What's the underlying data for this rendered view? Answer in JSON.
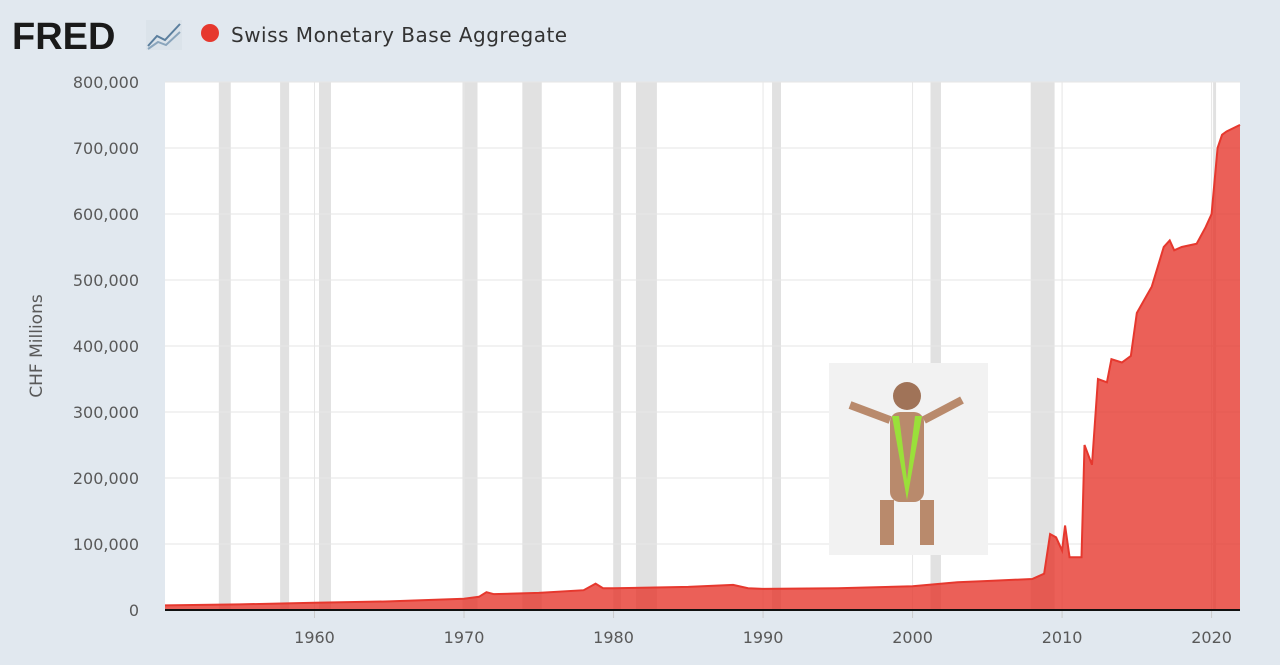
{
  "header": {
    "logo": "FRED"
  },
  "chart_data": {
    "type": "area",
    "y_label": "CHF Millions",
    "series": [
      {
        "name": "Swiss Monetary Base Aggregate",
        "color": "#e6382e",
        "x": [
          1950,
          1955,
          1960,
          1965,
          1970,
          1971,
          1971.5,
          1972,
          1975,
          1978,
          1978.8,
          1979.3,
          1980,
          1985,
          1988,
          1989,
          1990,
          1995,
          2000,
          2003,
          2005,
          2008,
          2008.8,
          2009.2,
          2009.6,
          2010,
          2010.2,
          2010.5,
          2011.3,
          2011.5,
          2012,
          2012.4,
          2013,
          2013.3,
          2014,
          2014.6,
          2015,
          2015.5,
          2016,
          2016.8,
          2017.2,
          2017.5,
          2018,
          2019,
          2019.6,
          2020,
          2020.4,
          2020.7,
          2021,
          2021.9
        ],
        "values": [
          7000,
          8500,
          11000,
          13000,
          17000,
          20000,
          27000,
          24000,
          26000,
          30000,
          40000,
          33000,
          33000,
          35000,
          38000,
          33000,
          32000,
          33000,
          36000,
          42000,
          44000,
          47000,
          55000,
          115000,
          110000,
          90000,
          128000,
          80000,
          80000,
          250000,
          220000,
          350000,
          345000,
          380000,
          375000,
          385000,
          450000,
          470000,
          490000,
          550000,
          560000,
          545000,
          550000,
          555000,
          580000,
          600000,
          700000,
          720000,
          725000,
          735000
        ]
      }
    ],
    "recessions": [
      [
        1953.6,
        1954.4
      ],
      [
        1957.7,
        1958.3
      ],
      [
        1960.3,
        1961.1
      ],
      [
        1969.9,
        1970.9
      ],
      [
        1973.9,
        1975.2
      ],
      [
        1980.0,
        1980.5
      ],
      [
        1981.5,
        1982.9
      ],
      [
        1990.6,
        1991.2
      ],
      [
        2001.2,
        2001.9
      ],
      [
        2007.9,
        2009.5
      ],
      [
        2020.1,
        2020.3
      ]
    ],
    "xlim": [
      1950,
      2021.9
    ],
    "xticks": [
      1960,
      1970,
      1980,
      1990,
      2000,
      2010,
      2020
    ],
    "ylim": [
      0,
      800000
    ],
    "yticks": [
      0,
      {
        "value": 100000,
        "label": "100,000"
      },
      {
        "value": 200000,
        "label": "200,000"
      },
      {
        "value": 300000,
        "label": "300,000"
      },
      {
        "value": 400000,
        "label": "400,000"
      },
      {
        "value": 500000,
        "label": "500,000"
      },
      {
        "value": 600000,
        "label": "600,000"
      },
      {
        "value": 700000,
        "label": "700,000"
      },
      {
        "value": 800000,
        "label": "800,000"
      }
    ],
    "grid": true,
    "recession_color": "#e1e1e1"
  }
}
